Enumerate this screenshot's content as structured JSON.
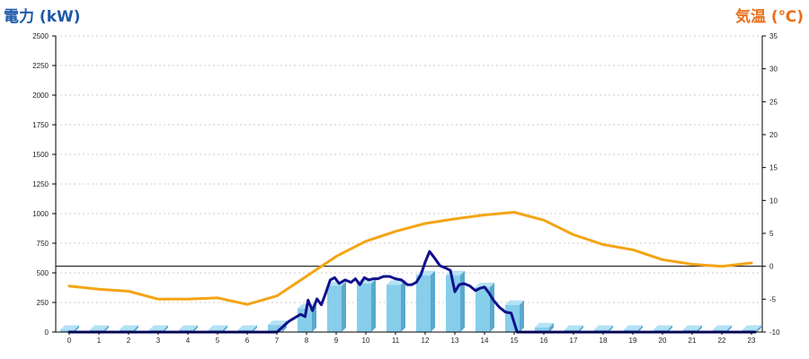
{
  "chart_data": {
    "type": "bar+line",
    "title_left": "電力 (kW)",
    "title_right": "気温 (℃)",
    "x_ticks": [
      "0",
      "1",
      "2",
      "3",
      "4",
      "5",
      "6",
      "7",
      "8",
      "9",
      "10",
      "11",
      "12",
      "13",
      "14",
      "15",
      "16",
      "17",
      "18",
      "19",
      "20",
      "21",
      "22",
      "23"
    ],
    "y_left_ticks": [
      "0",
      "250",
      "500",
      "750",
      "1000",
      "1250",
      "1500",
      "1750",
      "2000",
      "2250",
      "2500"
    ],
    "y_right_ticks": [
      "-10",
      "-5",
      "0",
      "5",
      "10",
      "15",
      "20",
      "25",
      "30",
      "35"
    ],
    "ylim_left": [
      0,
      2500
    ],
    "ylim_right": [
      -10,
      35
    ],
    "grid": true,
    "reference_line_right": 0,
    "colors": {
      "left_axis_title": "#1e5aa8",
      "right_axis_title": "#e8701a",
      "bars": "#87ceeb",
      "power_line": "#10108c",
      "temp_line": "#f4a414"
    },
    "series": [
      {
        "type": "bar",
        "axis": "left",
        "values": [
          20,
          20,
          20,
          20,
          20,
          20,
          20,
          60,
          200,
          390,
          410,
          400,
          480,
          480,
          380,
          230,
          40,
          20,
          20,
          20,
          20,
          20,
          20,
          20
        ]
      },
      {
        "type": "line",
        "axis": "left",
        "x": [
          0,
          1,
          2,
          3,
          4,
          5,
          6,
          7,
          7.4,
          7.8,
          7.95,
          8.05,
          8.2,
          8.35,
          8.5,
          8.65,
          8.8,
          8.95,
          9.1,
          9.3,
          9.5,
          9.65,
          9.8,
          9.95,
          10.1,
          10.25,
          10.4,
          10.6,
          10.8,
          11,
          11.2,
          11.4,
          11.55,
          11.7,
          11.85,
          12,
          12.15,
          12.3,
          12.5,
          12.7,
          12.85,
          13,
          13.15,
          13.3,
          13.5,
          13.7,
          13.85,
          14,
          14.15,
          14.3,
          14.5,
          14.7,
          14.9,
          15.1,
          15.3,
          15.5,
          15.7,
          16,
          17,
          18,
          19,
          20,
          21,
          22,
          23,
          23.4
        ],
        "values": [
          0,
          0,
          0,
          0,
          0,
          0,
          0,
          0,
          90,
          150,
          130,
          270,
          180,
          280,
          230,
          330,
          440,
          460,
          410,
          440,
          420,
          450,
          400,
          460,
          440,
          450,
          450,
          470,
          470,
          450,
          440,
          400,
          400,
          420,
          480,
          590,
          680,
          630,
          560,
          540,
          520,
          340,
          400,
          410,
          390,
          350,
          370,
          380,
          330,
          270,
          210,
          170,
          160,
          0,
          0,
          0,
          0,
          0,
          0,
          0,
          0,
          0,
          0,
          0,
          0,
          0
        ]
      },
      {
        "type": "line",
        "axis": "right",
        "x": [
          0,
          1,
          2,
          3,
          4,
          5,
          6,
          7,
          8,
          9,
          10,
          11,
          12,
          13,
          14,
          15,
          16,
          17,
          18,
          19,
          20,
          21,
          22,
          23
        ],
        "values": [
          -3,
          -3.5,
          -3.8,
          -5,
          -5,
          -4.8,
          -5.8,
          -4.5,
          -1.5,
          1.5,
          3.8,
          5.3,
          6.5,
          7.2,
          7.8,
          8.2,
          7,
          4.8,
          3.3,
          2.5,
          1,
          0.3,
          0,
          0.5
        ]
      }
    ]
  }
}
